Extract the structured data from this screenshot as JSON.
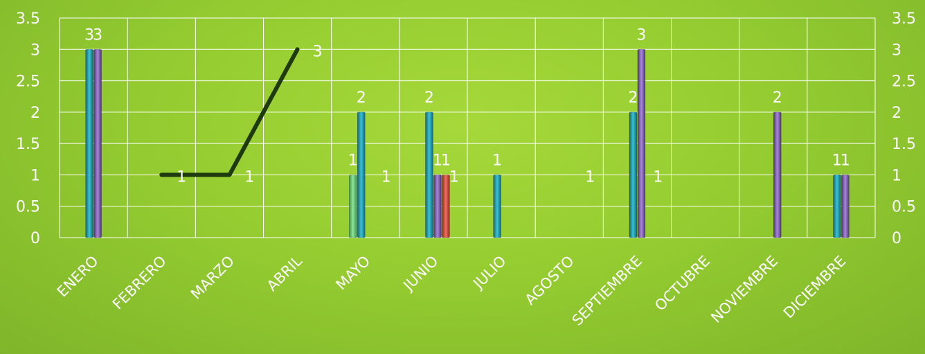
{
  "chart_data": {
    "type": "bar",
    "categories": [
      "ENERO",
      "FEBRERO",
      "MARZO",
      "ABRIL",
      "MAYO",
      "JUNIO",
      "JULIO",
      "AGOSTO",
      "SEPTIEMBRE",
      "OCTUBRE",
      "NOVIEMBRE",
      "DICIEMBRE"
    ],
    "ylim": [
      0,
      3.5
    ],
    "y2lim": [
      0,
      3.5
    ],
    "yticks": [
      "0",
      "0.5",
      "1",
      "1.5",
      "2",
      "2.5",
      "3",
      "3.5"
    ],
    "grid": true,
    "series": [
      {
        "type": "bar",
        "color": "#5fbf6a",
        "values": [
          null,
          null,
          null,
          null,
          1,
          null,
          null,
          null,
          null,
          null,
          null,
          null
        ]
      },
      {
        "type": "bar",
        "color": "#2aa4b4",
        "values": [
          3,
          null,
          null,
          null,
          2,
          2,
          1,
          null,
          2,
          null,
          null,
          1
        ]
      },
      {
        "type": "bar",
        "color": "#8a63b8",
        "values": [
          3,
          null,
          null,
          null,
          null,
          1,
          null,
          null,
          3,
          null,
          2,
          1
        ]
      },
      {
        "type": "bar",
        "color": "#d9503c",
        "values": [
          null,
          null,
          null,
          null,
          null,
          1,
          null,
          null,
          null,
          null,
          null,
          null
        ]
      },
      {
        "type": "line",
        "color": "#1f3a0c",
        "values": [
          null,
          1,
          1,
          3,
          null,
          null,
          null,
          null,
          null,
          null,
          null,
          null
        ]
      },
      {
        "type": "label-only",
        "values": [
          null,
          null,
          null,
          null,
          1,
          1,
          null,
          1,
          1,
          null,
          null,
          null
        ]
      }
    ]
  }
}
